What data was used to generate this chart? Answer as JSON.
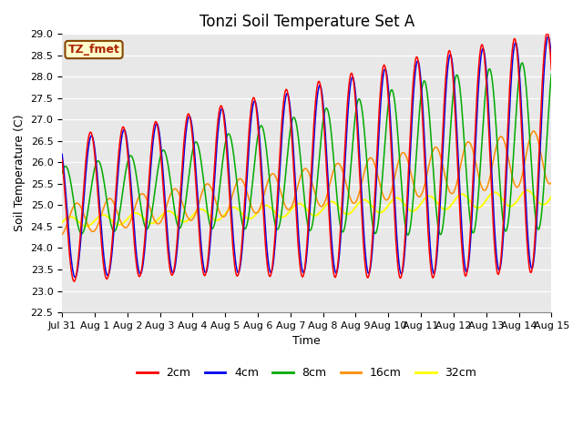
{
  "title": "Tonzi Soil Temperature Set A",
  "xlabel": "Time",
  "ylabel": "Soil Temperature (C)",
  "ylim": [
    22.5,
    29.0
  ],
  "yticks": [
    22.5,
    23.0,
    23.5,
    24.0,
    24.5,
    25.0,
    25.5,
    26.0,
    26.5,
    27.0,
    27.5,
    28.0,
    28.5,
    29.0
  ],
  "xtick_labels": [
    "Jul 31",
    "Aug 1",
    "Aug 2",
    "Aug 3",
    "Aug 4",
    "Aug 5",
    "Aug 6",
    "Aug 7",
    "Aug 8",
    "Aug 9",
    "Aug 10",
    "Aug 11",
    "Aug 12",
    "Aug 13",
    "Aug 14",
    "Aug 15"
  ],
  "colors": {
    "2cm": "#FF0000",
    "4cm": "#0000EE",
    "8cm": "#00AA00",
    "16cm": "#FF8C00",
    "32cm": "#FFFF00"
  },
  "annotation_text": "TZ_fmet",
  "annotation_bg": "#FFFFCC",
  "annotation_edge": "#884400",
  "bg_color": "#E8E8E8",
  "fig_bg": "#FFFFFF",
  "title_fontsize": 12,
  "axis_label_fontsize": 9,
  "tick_fontsize": 8,
  "legend_fontsize": 9
}
